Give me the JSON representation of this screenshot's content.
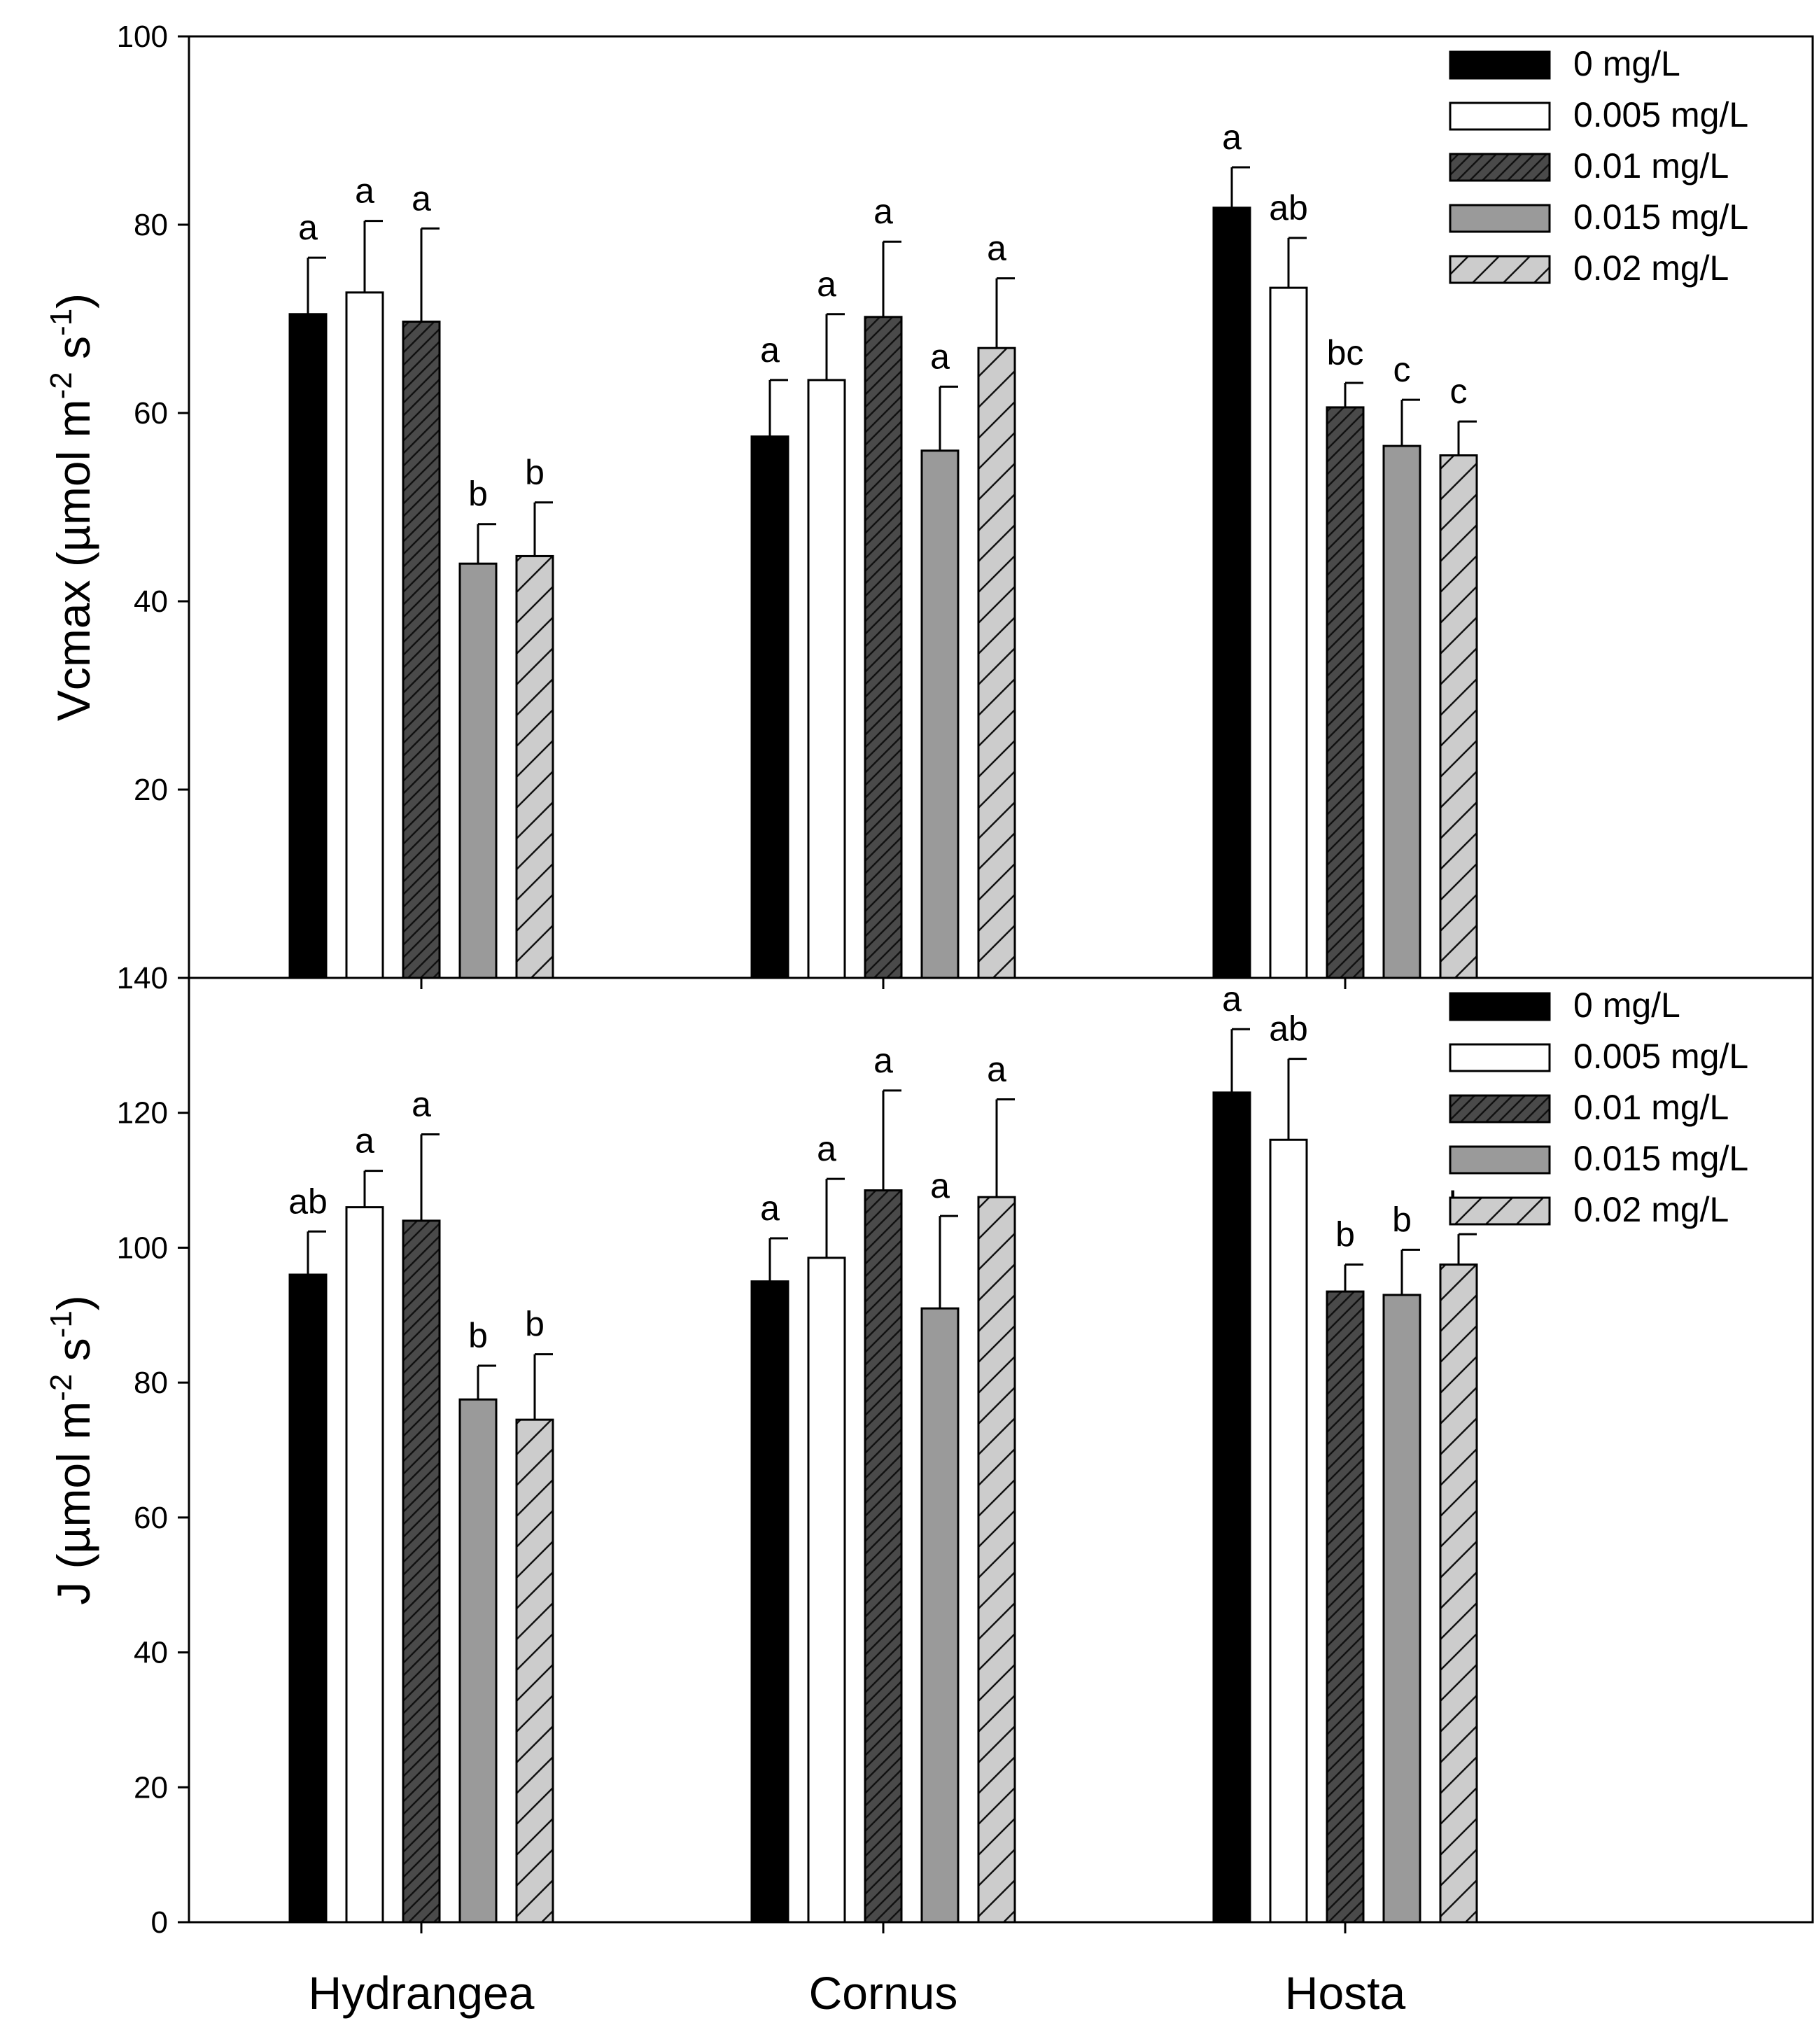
{
  "chart_data": [
    {
      "type": "bar",
      "panel": "top",
      "ylabel": "Vcmax (µmol m⁻² s⁻¹)",
      "ylabel_parts": [
        "Vcmax (",
        "µ",
        "mol m",
        "-2",
        " s",
        "-1",
        ")"
      ],
      "ylim": [
        0,
        100
      ],
      "yticks": [
        20,
        40,
        60,
        80,
        100
      ],
      "ytick_labels": [
        "20",
        "40",
        "60",
        "80",
        "100"
      ],
      "categories": [
        "Hydrangea",
        "Cornus",
        "Hosta"
      ],
      "legend": {
        "placement": "top-right"
      },
      "series": [
        {
          "name": "0 mg/L",
          "fill": "solid-black",
          "values": [
            70.5,
            57.5,
            81.8
          ],
          "errors": [
            6.0,
            6.0,
            4.3
          ],
          "letters": [
            "a",
            "a",
            "a"
          ]
        },
        {
          "name": "0.005 mg/L",
          "fill": "white",
          "values": [
            72.8,
            63.5,
            73.3
          ],
          "errors": [
            7.6,
            7.0,
            5.3
          ],
          "letters": [
            "a",
            "a",
            "ab"
          ]
        },
        {
          "name": "0.01 mg/L",
          "fill": "dark-gray-dense-hatch",
          "values": [
            69.7,
            70.2,
            60.6
          ],
          "errors": [
            9.9,
            8.0,
            2.6
          ],
          "letters": [
            "a",
            "a",
            "bc"
          ]
        },
        {
          "name": "0.015 mg/L",
          "fill": "medium-gray",
          "values": [
            44.0,
            56.0,
            56.5
          ],
          "errors": [
            4.2,
            6.8,
            4.9
          ],
          "letters": [
            "b",
            "a",
            "c"
          ]
        },
        {
          "name": "0.02 mg/L",
          "fill": "light-gray-sparse-hatch",
          "values": [
            44.8,
            66.9,
            55.5
          ],
          "errors": [
            5.7,
            7.4,
            3.6
          ],
          "letters": [
            "b",
            "a",
            "c"
          ]
        }
      ]
    },
    {
      "type": "bar",
      "panel": "bottom",
      "ylabel": "J (µmol m⁻² s⁻¹)",
      "ylabel_parts": [
        "J (",
        "µ",
        "mol m",
        "-2",
        " s",
        "-1",
        ")"
      ],
      "ylim": [
        0,
        140
      ],
      "yticks": [
        0,
        20,
        40,
        60,
        80,
        100,
        120,
        140
      ],
      "ytick_labels": [
        "0",
        "20",
        "40",
        "60",
        "80",
        "100",
        "120",
        "140"
      ],
      "categories": [
        "Hydrangea",
        "Cornus",
        "Hosta"
      ],
      "legend": {
        "placement": "top-right"
      },
      "series": [
        {
          "name": "0 mg/L",
          "fill": "solid-black",
          "values": [
            96.0,
            95.0,
            123.0
          ],
          "errors": [
            6.4,
            6.4,
            9.4
          ],
          "letters": [
            "ab",
            "a",
            "a"
          ]
        },
        {
          "name": "0.005 mg/L",
          "fill": "white",
          "values": [
            106.0,
            98.5,
            116.0
          ],
          "errors": [
            5.4,
            11.7,
            12.0
          ],
          "letters": [
            "a",
            "a",
            "ab"
          ]
        },
        {
          "name": "0.01 mg/L",
          "fill": "dark-gray-dense-hatch",
          "values": [
            104.0,
            108.5,
            93.5
          ],
          "errors": [
            12.8,
            14.8,
            4.0
          ],
          "letters": [
            "a",
            "a",
            "b"
          ]
        },
        {
          "name": "0.015 mg/L",
          "fill": "medium-gray",
          "values": [
            77.5,
            91.0,
            93.0
          ],
          "errors": [
            5.0,
            13.7,
            6.7
          ],
          "letters": [
            "b",
            "a",
            "b"
          ]
        },
        {
          "name": "0.02 mg/L",
          "fill": "light-gray-sparse-hatch",
          "values": [
            74.5,
            107.5,
            97.5
          ],
          "errors": [
            9.7,
            14.5,
            4.5
          ],
          "letters": [
            "b",
            "a",
            "b"
          ]
        }
      ]
    }
  ],
  "colors": {
    "solid_black": "#000000",
    "white": "#ffffff",
    "dark_gray": "#4a4a4a",
    "medium_gray": "#9a9a9a",
    "light_gray": "#cccccc"
  }
}
